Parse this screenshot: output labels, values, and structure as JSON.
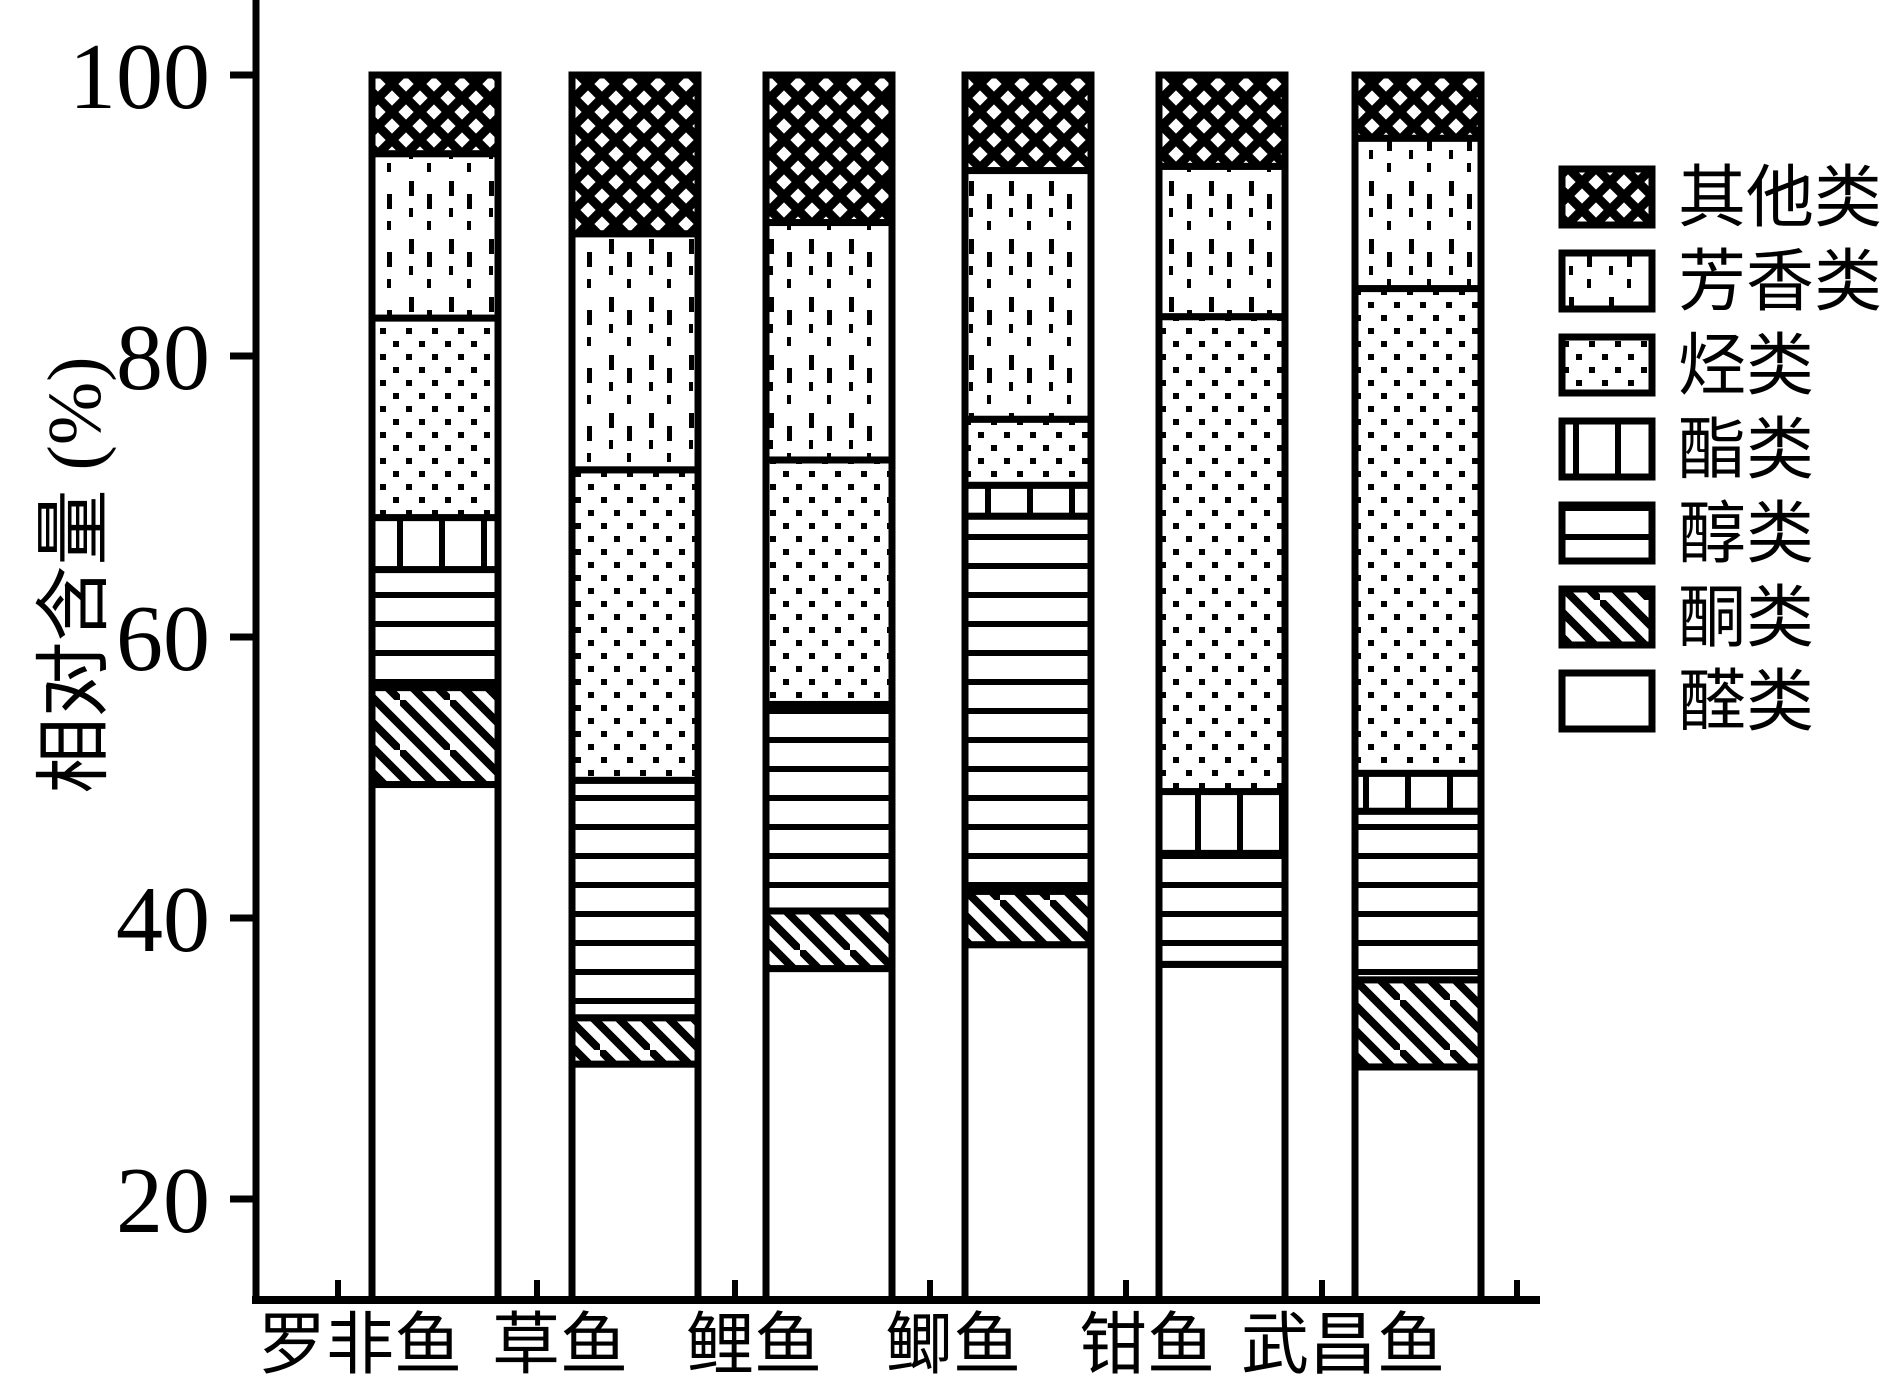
{
  "figure": {
    "background": "#ffffff",
    "ink_color": "#000000"
  },
  "chart_data": {
    "type": "bar",
    "stacked": true,
    "title": "",
    "xlabel": "",
    "ylabel": "相对含量 (%)",
    "ylim": [
      12.5,
      105
    ],
    "yticks": [
      20,
      40,
      60,
      80,
      100
    ],
    "grid": false,
    "legend_position": "right",
    "categories": [
      "罗非鱼",
      "草鱼",
      "鲤鱼",
      "鲫鱼",
      "钳鱼",
      "武昌鱼"
    ],
    "series": [
      {
        "name": "醛类",
        "pattern": "blank",
        "values": [
          49.5,
          29.6,
          36.4,
          38.1,
          36.7,
          29.4
        ]
      },
      {
        "name": "酮类",
        "pattern": "diagonal-lines",
        "values": [
          6.9,
          3.3,
          4.1,
          3.8,
          0,
          6.2
        ]
      },
      {
        "name": "醇类",
        "pattern": "horizontal-lines",
        "values": [
          8.4,
          16.9,
          14.7,
          26.7,
          7.9,
          12.0
        ]
      },
      {
        "name": "酯类",
        "pattern": "vertical-lines",
        "values": [
          3.7,
          0,
          0,
          2.2,
          4.4,
          2.7
        ]
      },
      {
        "name": "烃类",
        "pattern": "dense-dots",
        "values": [
          14.2,
          22.1,
          17.4,
          4.7,
          33.8,
          34.5
        ]
      },
      {
        "name": "芳香类",
        "pattern": "dash-dot-columns",
        "values": [
          11.7,
          16.8,
          16.9,
          17.7,
          10.7,
          10.7
        ]
      },
      {
        "name": "其他类",
        "pattern": "crosshatch",
        "values": [
          5.6,
          11.3,
          10.5,
          6.8,
          6.5,
          4.5
        ]
      }
    ],
    "legend_order_top_to_bottom": [
      "其他类",
      "芳香类",
      "烃类",
      "酯类",
      "醇类",
      "酮类",
      "醛类"
    ]
  }
}
